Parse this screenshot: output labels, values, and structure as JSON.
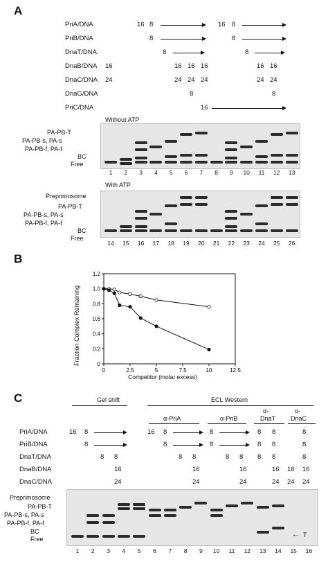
{
  "panelA": {
    "letter": "A",
    "rows": [
      "PriA/DNA",
      "PriB/DNA",
      "DnaT/DNA",
      "DnaB/DNA",
      "DnaC/DNA",
      "DnaG/DNA",
      "PriC/DNA"
    ],
    "without_atp": "Without ATP",
    "with_atp": "With ATP",
    "band_labels_top": [
      "PA-PB-T",
      "PA-PB-s, PA-s",
      "PA-PB-f, PA-f",
      "BC",
      "Free"
    ],
    "band_labels_bottom": [
      "Preprimosome",
      "PA-PB-T",
      "PA-PB-s, PA-s",
      "PA-PB-f, PA-f",
      "BC",
      "Free"
    ],
    "lanes_top": [
      "1",
      "2",
      "3",
      "4",
      "5",
      "6",
      "7",
      "8",
      "9",
      "10",
      "11",
      "12",
      "13"
    ],
    "lanes_bottom": [
      "14",
      "15",
      "16",
      "17",
      "18",
      "19",
      "20",
      "21",
      "22",
      "23",
      "24",
      "25",
      "26"
    ],
    "vals": {
      "n16": "16",
      "n8": "8",
      "n24": "24"
    }
  },
  "panelB": {
    "letter": "B",
    "chart_data": {
      "type": "line",
      "xlabel": "Competitor (molar excess)",
      "ylabel": "Fraction Complex Remaining",
      "xlim": [
        0,
        12.5
      ],
      "ylim": [
        0,
        1.2
      ],
      "xticks": [
        "0",
        "2.5",
        "5",
        "7.5",
        "10",
        "12.5"
      ],
      "yticks": [
        "0",
        "0.2",
        "0.4",
        "0.6",
        "0.8",
        "1.0",
        "1.2"
      ],
      "series": [
        {
          "marker": "open",
          "x": [
            0,
            0.5,
            1,
            1.5,
            2.5,
            3.5,
            5,
            10
          ],
          "y": [
            1.0,
            1.0,
            0.99,
            0.95,
            0.93,
            0.9,
            0.85,
            0.76
          ]
        },
        {
          "marker": "filled",
          "x": [
            0,
            0.5,
            1,
            1.5,
            2.5,
            3.5,
            5,
            10
          ],
          "y": [
            1.0,
            0.98,
            0.94,
            0.78,
            0.76,
            0.61,
            0.5,
            0.19
          ]
        }
      ]
    }
  },
  "panelC": {
    "letter": "C",
    "header_gelshift": "Gel shift",
    "header_ecl": "ECL Western",
    "sub_headers": [
      "α-PriA",
      "α-PriB",
      "α-",
      "DnaT",
      "α-",
      "DnaC"
    ],
    "rows": [
      "PriA/DNA",
      "PriB/DNA",
      "DnaT/DNA",
      "DnaB/DNA",
      "DnaC/DNA"
    ],
    "band_labels": [
      "Preprimosome",
      "PA-PB-T",
      "PA-PB-s, PA-s",
      "PA-PB-f, PA-f",
      "BC",
      "Free"
    ],
    "t_label": "T",
    "lanes": [
      "1",
      "2",
      "3",
      "4",
      "5",
      "6",
      "7",
      "8",
      "9",
      "10",
      "11",
      "12",
      "13",
      "14",
      "15",
      "16"
    ]
  }
}
